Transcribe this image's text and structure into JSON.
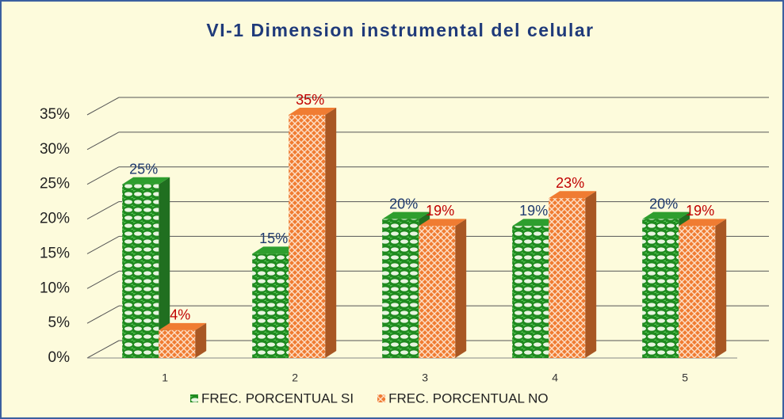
{
  "chart_data": {
    "type": "bar3d",
    "title": "VI-1 Dimension instrumental del celular",
    "categories": [
      "1",
      "2",
      "3",
      "4",
      "5"
    ],
    "series": [
      {
        "name": "FREC. PORCENTUAL SI",
        "color": "#2e9e2e",
        "values": [
          25,
          15,
          20,
          19,
          20
        ],
        "value_labels": [
          "25%",
          "15%",
          "20%",
          "19%",
          "20%"
        ],
        "label_color": "#1f3a6e"
      },
      {
        "name": "FREC. PORCENTUAL NO",
        "color": "#f07c32",
        "values": [
          4,
          35,
          19,
          23,
          19
        ],
        "value_labels": [
          "4%",
          "35%",
          "19%",
          "23%",
          "19%"
        ],
        "label_color": "#c00000"
      }
    ],
    "ylim": [
      0,
      35
    ],
    "yticks": [
      {
        "value": 0,
        "label": "0%"
      },
      {
        "value": 5,
        "label": "5%"
      },
      {
        "value": 10,
        "label": "10%"
      },
      {
        "value": 15,
        "label": "15%"
      },
      {
        "value": 20,
        "label": "20%"
      },
      {
        "value": 25,
        "label": "25%"
      },
      {
        "value": 30,
        "label": "30%"
      },
      {
        "value": 35,
        "label": "35%"
      }
    ],
    "grid": true,
    "legend": "bottom"
  }
}
